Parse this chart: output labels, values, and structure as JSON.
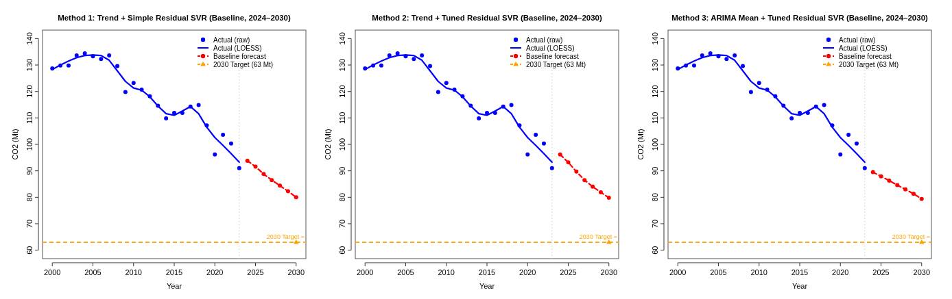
{
  "chart_data": [
    {
      "type": "line",
      "title": "Method 1: Trend + Simple Residual SVR (Baseline, 2024–2030)",
      "xlabel": "Year",
      "ylabel": "CO2 (Mt)",
      "x": [
        2000,
        2001,
        2002,
        2003,
        2004,
        2005,
        2006,
        2007,
        2008,
        2009,
        2010,
        2011,
        2012,
        2013,
        2014,
        2015,
        2016,
        2017,
        2018,
        2019,
        2020,
        2021,
        2022,
        2023
      ],
      "series": [
        {
          "name": "Actual (raw)",
          "type": "scatter",
          "marker": "circle",
          "color": "#0000ff",
          "values": [
            128.7,
            129.8,
            129.8,
            133.6,
            134.4,
            133.3,
            132.3,
            133.6,
            129.6,
            119.8,
            123.2,
            120.7,
            118.2,
            114.6,
            109.8,
            111.9,
            111.9,
            114.3,
            114.9,
            107.2,
            96.2,
            103.6,
            100.3,
            91.0
          ]
        },
        {
          "name": "Actual (LOESS)",
          "marker": "none",
          "line_style": "solid",
          "color": "#0000ff",
          "values": [
            128.3,
            130.0,
            131.5,
            132.8,
            133.6,
            133.8,
            133.6,
            131.8,
            127.8,
            123.8,
            121.3,
            120.5,
            118.0,
            114.5,
            111.6,
            111.0,
            112.6,
            114.3,
            111.6,
            106.5,
            102.6,
            99.6,
            96.5,
            93.3
          ]
        },
        {
          "name": "Baseline forecast",
          "marker": "circle",
          "line_style": "dashed",
          "color": "#ff0000",
          "x": [
            2024,
            2025,
            2026,
            2027,
            2028,
            2029,
            2030
          ],
          "values": [
            93.8,
            91.6,
            88.8,
            86.5,
            84.4,
            82.3,
            80.0
          ]
        },
        {
          "name": "2030 Target (63 Mt)",
          "type": "scatter",
          "marker": "triangle",
          "line_style": "dashed",
          "color": "#ffa500",
          "x": [
            2030
          ],
          "values": [
            63
          ]
        }
      ],
      "ref_lines": [
        {
          "axis": "x",
          "value": 2023,
          "color": "#c8c8c8",
          "line_style": "dotted"
        },
        {
          "axis": "y",
          "value": 63,
          "label": "2030 Target =",
          "color": "#ffa500",
          "line_style": "dashed"
        }
      ],
      "xlim": [
        1998.8,
        2031.2
      ],
      "xticks": [
        2000,
        2005,
        2010,
        2015,
        2020,
        2025,
        2030
      ],
      "ylim": [
        56.8,
        143.2
      ],
      "yticks": [
        60,
        70,
        80,
        90,
        100,
        110,
        120,
        130,
        140
      ],
      "grid": false,
      "legend": "top right"
    },
    {
      "type": "line",
      "title": "Method 2: Trend + Tuned Residual SVR (Baseline, 2024–2030)",
      "xlabel": "Year",
      "ylabel": "CO2 (Mt)",
      "x": [
        2000,
        2001,
        2002,
        2003,
        2004,
        2005,
        2006,
        2007,
        2008,
        2009,
        2010,
        2011,
        2012,
        2013,
        2014,
        2015,
        2016,
        2017,
        2018,
        2019,
        2020,
        2021,
        2022,
        2023
      ],
      "series": [
        {
          "name": "Actual (raw)",
          "type": "scatter",
          "marker": "circle",
          "color": "#0000ff",
          "values": [
            128.7,
            129.8,
            129.8,
            133.6,
            134.4,
            133.3,
            132.3,
            133.6,
            129.6,
            119.8,
            123.2,
            120.7,
            118.2,
            114.6,
            109.8,
            111.9,
            111.9,
            114.3,
            114.9,
            107.2,
            96.2,
            103.6,
            100.3,
            91.0
          ]
        },
        {
          "name": "Actual (LOESS)",
          "marker": "none",
          "line_style": "solid",
          "color": "#0000ff",
          "values": [
            128.3,
            130.0,
            131.5,
            132.8,
            133.6,
            133.8,
            133.6,
            131.8,
            127.8,
            123.8,
            121.3,
            120.5,
            118.0,
            114.5,
            111.6,
            111.0,
            112.6,
            114.3,
            111.6,
            106.5,
            102.6,
            99.6,
            96.5,
            93.3
          ]
        },
        {
          "name": "Baseline forecast",
          "marker": "circle",
          "line_style": "dashed",
          "color": "#ff0000",
          "x": [
            2024,
            2025,
            2026,
            2027,
            2028,
            2029,
            2030
          ],
          "values": [
            96.2,
            93.2,
            89.7,
            86.5,
            84.0,
            81.9,
            79.8
          ]
        },
        {
          "name": "2030 Target (63 Mt)",
          "type": "scatter",
          "marker": "triangle",
          "line_style": "dashed",
          "color": "#ffa500",
          "x": [
            2030
          ],
          "values": [
            63
          ]
        }
      ],
      "ref_lines": [
        {
          "axis": "x",
          "value": 2023,
          "color": "#c8c8c8",
          "line_style": "dotted"
        },
        {
          "axis": "y",
          "value": 63,
          "label": "2030 Target =",
          "color": "#ffa500",
          "line_style": "dashed"
        }
      ],
      "xlim": [
        1998.8,
        2031.2
      ],
      "xticks": [
        2000,
        2005,
        2010,
        2015,
        2020,
        2025,
        2030
      ],
      "ylim": [
        56.8,
        143.2
      ],
      "yticks": [
        60,
        70,
        80,
        90,
        100,
        110,
        120,
        130,
        140
      ],
      "grid": false,
      "legend": "top right"
    },
    {
      "type": "line",
      "title": "Method 3: ARIMA Mean + Tuned Residual SVR (Baseline, 2024–2030)",
      "xlabel": "Year",
      "ylabel": "CO2 (Mt)",
      "x": [
        2000,
        2001,
        2002,
        2003,
        2004,
        2005,
        2006,
        2007,
        2008,
        2009,
        2010,
        2011,
        2012,
        2013,
        2014,
        2015,
        2016,
        2017,
        2018,
        2019,
        2020,
        2021,
        2022,
        2023
      ],
      "series": [
        {
          "name": "Actual (raw)",
          "type": "scatter",
          "marker": "circle",
          "color": "#0000ff",
          "values": [
            128.7,
            129.8,
            129.8,
            133.6,
            134.4,
            133.3,
            132.3,
            133.6,
            129.6,
            119.8,
            123.2,
            120.7,
            118.2,
            114.6,
            109.8,
            111.9,
            111.9,
            114.3,
            114.9,
            107.2,
            96.2,
            103.6,
            100.3,
            91.0
          ]
        },
        {
          "name": "Actual (LOESS)",
          "marker": "none",
          "line_style": "solid",
          "color": "#0000ff",
          "values": [
            128.3,
            130.0,
            131.5,
            132.8,
            133.6,
            133.8,
            133.6,
            131.8,
            127.8,
            123.8,
            121.3,
            120.5,
            118.0,
            114.5,
            111.6,
            111.0,
            112.6,
            114.3,
            111.6,
            106.5,
            102.6,
            99.6,
            96.5,
            93.3
          ]
        },
        {
          "name": "Baseline forecast",
          "marker": "circle",
          "line_style": "dashed",
          "color": "#ff0000",
          "x": [
            2024,
            2025,
            2026,
            2027,
            2028,
            2029,
            2030
          ],
          "values": [
            89.5,
            87.9,
            86.3,
            84.6,
            83.0,
            81.3,
            79.4
          ]
        },
        {
          "name": "2030 Target (63 Mt)",
          "type": "scatter",
          "marker": "triangle",
          "line_style": "dashed",
          "color": "#ffa500",
          "x": [
            2030
          ],
          "values": [
            63
          ]
        }
      ],
      "ref_lines": [
        {
          "axis": "x",
          "value": 2023,
          "color": "#c8c8c8",
          "line_style": "dotted"
        },
        {
          "axis": "y",
          "value": 63,
          "label": "2030 Target =",
          "color": "#ffa500",
          "line_style": "dashed"
        }
      ],
      "xlim": [
        1998.8,
        2031.2
      ],
      "xticks": [
        2000,
        2005,
        2010,
        2015,
        2020,
        2025,
        2030
      ],
      "ylim": [
        56.8,
        143.2
      ],
      "yticks": [
        60,
        70,
        80,
        90,
        100,
        110,
        120,
        130,
        140
      ],
      "grid": false,
      "legend": "top right"
    }
  ]
}
